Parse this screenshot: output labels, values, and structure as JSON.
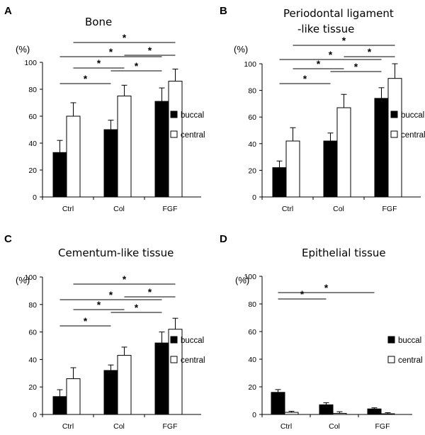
{
  "figure": {
    "panels": [
      "A",
      "B",
      "C",
      "D"
    ]
  },
  "chart_data": [
    {
      "panel": "A",
      "type": "bar",
      "title": "Bone",
      "ylabel": "(%)",
      "ylim": [
        0,
        100
      ],
      "yticks": [
        0,
        20,
        40,
        60,
        80,
        100
      ],
      "categories": [
        "Ctrl",
        "Col",
        "FGF"
      ],
      "series": [
        {
          "name": "buccal",
          "color": "#000000",
          "values": [
            33,
            50,
            71
          ],
          "errors": [
            9,
            7,
            10
          ]
        },
        {
          "name": "central",
          "color": "#ffffff",
          "values": [
            60,
            75,
            86
          ],
          "errors": [
            10,
            8,
            9
          ]
        }
      ],
      "significance": [
        {
          "label": "*",
          "from": 0,
          "to": 1
        },
        {
          "label": "*",
          "from": 1,
          "to": 2
        },
        {
          "label": "*",
          "from": 0,
          "to": 2
        },
        {
          "label": "*",
          "from": 0.5,
          "to": 1.5
        },
        {
          "label": "*",
          "from": 1.5,
          "to": 2.5
        },
        {
          "label": "*",
          "from": 0.5,
          "to": 2.5
        }
      ]
    },
    {
      "panel": "B",
      "type": "bar",
      "title": [
        "Periodontal ligament",
        "-like tissue"
      ],
      "ylabel": "(%)",
      "ylim": [
        0,
        100
      ],
      "yticks": [
        0,
        20,
        40,
        60,
        80,
        100
      ],
      "categories": [
        "Ctrl",
        "Col",
        "FGF"
      ],
      "series": [
        {
          "name": "buccal",
          "color": "#000000",
          "values": [
            22,
            42,
            74
          ],
          "errors": [
            5,
            6,
            8
          ]
        },
        {
          "name": "central",
          "color": "#ffffff",
          "values": [
            42,
            67,
            89
          ],
          "errors": [
            10,
            10,
            11
          ]
        }
      ],
      "significance": [
        {
          "label": "*",
          "from": 0,
          "to": 1
        },
        {
          "label": "*",
          "from": 1,
          "to": 2
        },
        {
          "label": "*",
          "from": 0,
          "to": 2
        },
        {
          "label": "*",
          "from": 0.5,
          "to": 1.5
        },
        {
          "label": "*",
          "from": 1.5,
          "to": 2.5
        },
        {
          "label": "*",
          "from": 0.5,
          "to": 2.5
        }
      ]
    },
    {
      "panel": "C",
      "type": "bar",
      "title": "Cementum-like tissue",
      "ylabel": "(%)",
      "ylim": [
        0,
        100
      ],
      "yticks": [
        0,
        20,
        40,
        60,
        80,
        100
      ],
      "categories": [
        "Ctrl",
        "Col",
        "FGF"
      ],
      "series": [
        {
          "name": "buccal",
          "color": "#000000",
          "values": [
            13,
            32,
            52
          ],
          "errors": [
            5,
            4,
            8
          ]
        },
        {
          "name": "central",
          "color": "#ffffff",
          "values": [
            26,
            43,
            62
          ],
          "errors": [
            8,
            6,
            8
          ]
        }
      ],
      "significance": [
        {
          "label": "*",
          "from": 0,
          "to": 1
        },
        {
          "label": "*",
          "from": 1,
          "to": 2
        },
        {
          "label": "*",
          "from": 0,
          "to": 2
        },
        {
          "label": "*",
          "from": 0.5,
          "to": 1.5
        },
        {
          "label": "*",
          "from": 1.5,
          "to": 2.5
        },
        {
          "label": "*",
          "from": 0.5,
          "to": 2.5
        }
      ]
    },
    {
      "panel": "D",
      "type": "bar",
      "title": "Epithelial tissue",
      "ylabel": "(%)",
      "ylim": [
        0,
        100
      ],
      "yticks": [
        0,
        20,
        40,
        60,
        80,
        100
      ],
      "categories": [
        "Ctrl",
        "Col",
        "FGF"
      ],
      "series": [
        {
          "name": "buccal",
          "color": "#000000",
          "values": [
            16,
            7,
            4
          ],
          "errors": [
            2,
            1.5,
            0.8
          ]
        },
        {
          "name": "central",
          "color": "#ffffff",
          "values": [
            1.5,
            0.8,
            0.5
          ],
          "errors": [
            0.8,
            1.2,
            0.8
          ]
        }
      ],
      "significance": [
        {
          "label": "*",
          "from": 0,
          "to": 1
        },
        {
          "label": "*",
          "from": 0,
          "to": 2
        }
      ]
    }
  ]
}
